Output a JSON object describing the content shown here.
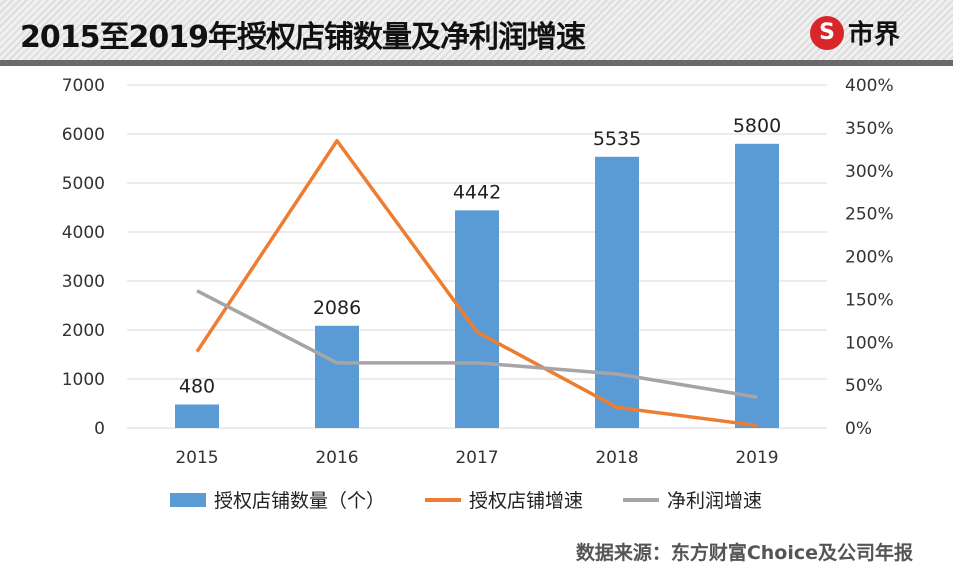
{
  "header": {
    "title": "2015至2019年授权店铺数量及净利润增速",
    "logo_text": "市界",
    "logo_symbol": "S"
  },
  "source": "数据来源：东方财富Choice及公司年报",
  "colors": {
    "bar": "#5b9bd5",
    "store_growth": "#ed7d31",
    "profit_growth": "#a5a5a5",
    "header_bar": "#6a6a6a",
    "logo": "#d9262b"
  },
  "chart_data": {
    "type": "bar+line",
    "title": "2015至2019年授权店铺数量及净利润增速",
    "categories": [
      "2015",
      "2016",
      "2017",
      "2018",
      "2019"
    ],
    "y_left": {
      "range": [
        0,
        7000
      ],
      "ticks": [
        "0",
        "1000",
        "2000",
        "3000",
        "4000",
        "5000",
        "6000",
        "7000"
      ]
    },
    "y_right": {
      "range": [
        0,
        400
      ],
      "ticks": [
        "0%",
        "50%",
        "100%",
        "150%",
        "200%",
        "250%",
        "300%",
        "350%",
        "400%"
      ]
    },
    "grid": true,
    "legend_position": "bottom",
    "series": [
      {
        "name": "授权店铺数量（个）",
        "type": "bar",
        "axis": "left",
        "values": [
          480,
          2086,
          4442,
          5535,
          5800
        ],
        "labels": [
          "480",
          "2086",
          "4442",
          "5535",
          "5800"
        ]
      },
      {
        "name": "授权店铺增速",
        "type": "line",
        "axis": "right",
        "values": [
          89,
          335,
          112,
          24,
          3
        ]
      },
      {
        "name": "净利润增速",
        "type": "line",
        "axis": "right",
        "values": [
          160,
          76,
          76,
          63,
          36
        ]
      }
    ]
  }
}
